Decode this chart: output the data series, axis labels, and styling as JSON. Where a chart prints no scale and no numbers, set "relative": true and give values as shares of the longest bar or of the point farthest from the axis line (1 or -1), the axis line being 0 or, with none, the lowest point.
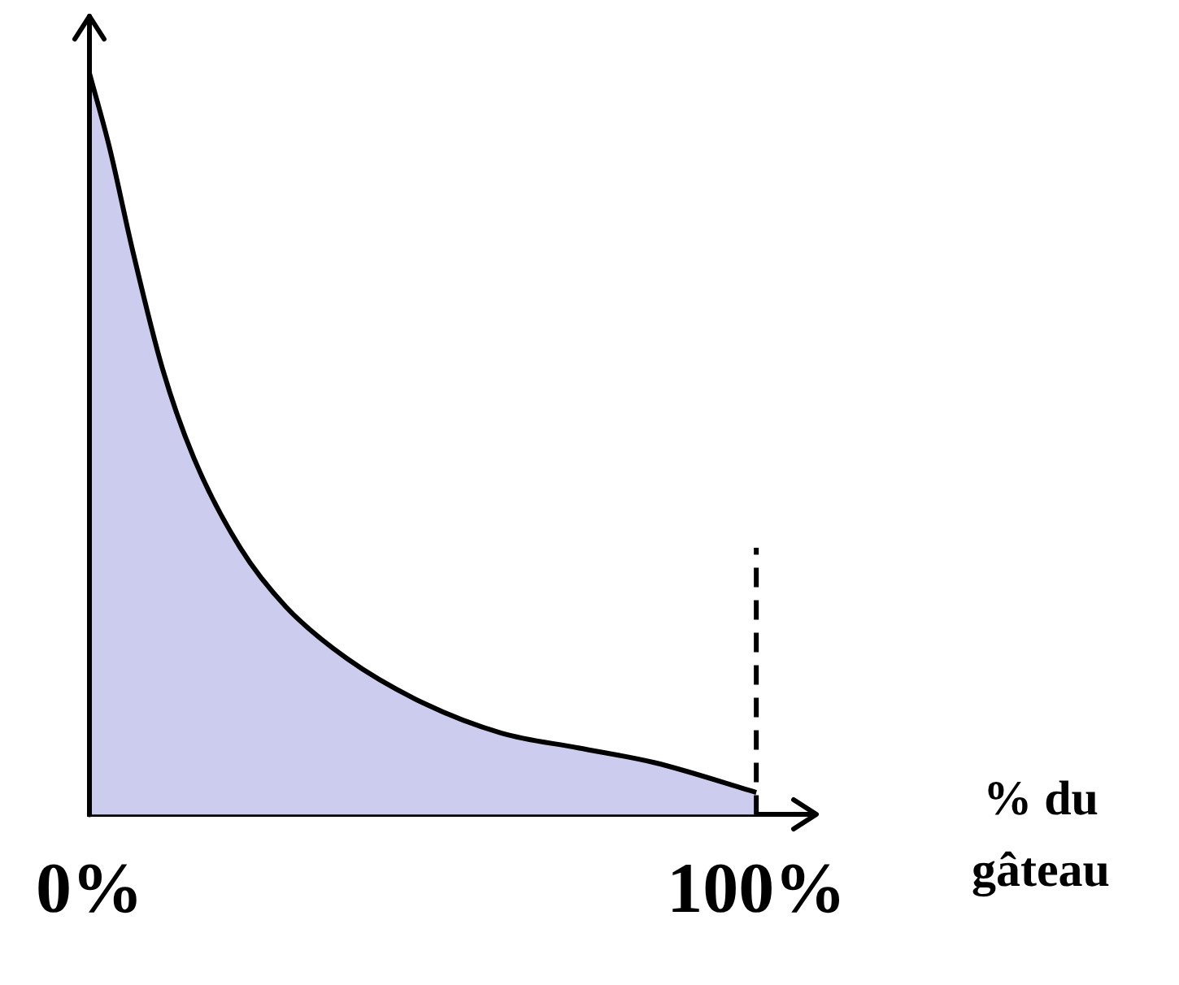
{
  "chart_data": {
    "type": "area",
    "relative": true,
    "xlabel": "% du gâteau",
    "x": [
      0,
      3,
      6.5,
      11,
      15.7,
      22.6,
      29.5,
      38.7,
      50.2,
      61.8,
      73.3,
      84.8,
      100
    ],
    "values": [
      1,
      0.9,
      0.76,
      0.6,
      0.48,
      0.36,
      0.28,
      0.21,
      0.15,
      0.11,
      0.09,
      0.07,
      0.03
    ],
    "color": "#ccccee",
    "xlim": [
      0,
      109
    ],
    "xticks": [
      {
        "value": 0,
        "label": "0%"
      },
      {
        "value": 100,
        "label": "100%"
      }
    ],
    "grid": false,
    "legend": false,
    "marker": "none",
    "line_style": "solid",
    "ref_lines": [
      {
        "axis": "x",
        "value": 100,
        "line_style": "dashed"
      }
    ]
  }
}
